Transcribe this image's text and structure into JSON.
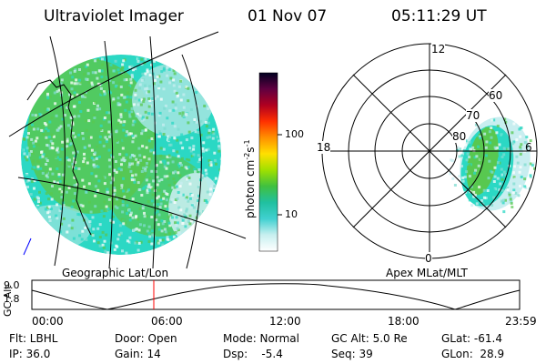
{
  "header": {
    "instrument": "Ultraviolet Imager",
    "date": "01 Nov 07",
    "time": "05:11:29 UT"
  },
  "colorbar": {
    "label_main": "photon cm",
    "label_exp1": "-2",
    "label_s": "s",
    "label_exp2": "-1",
    "ticks": [
      "100",
      "10"
    ],
    "stops": [
      "#ffffff",
      "#c8f0f0",
      "#40d0d0",
      "#20c0a0",
      "#40c040",
      "#a0e000",
      "#ffe000",
      "#ff9000",
      "#ff3000",
      "#b00020",
      "#600040",
      "#000020"
    ]
  },
  "left_panel": {
    "caption": "Geographic Lat/Lon"
  },
  "right_panel": {
    "caption": "Apex MLat/MLT",
    "lat_labels": [
      "80",
      "70",
      "60"
    ],
    "mlt_labels": [
      "12",
      "18",
      "6",
      "0"
    ]
  },
  "altitude_strip": {
    "axis_label": "GC Alt",
    "y_ticks": [
      "9.0",
      "1.8"
    ],
    "x_ticks": [
      "00:00",
      "06:00",
      "12:00",
      "18:00",
      "23:59"
    ]
  },
  "status": {
    "flt": "Flt: LBHL",
    "ip": "IP: 36.0",
    "door": "Door: Open",
    "gain": "Gain: 14",
    "mode": "Mode: Normal",
    "dsp": "Dsp:    -5.4",
    "gc_alt": "GC Alt: 5.0 Re",
    "seq": "Seq: 39",
    "glat": "GLat: -61.4",
    "glon": "GLon:  28.9"
  },
  "colors": {
    "aurora_dense": "#2bd8c4",
    "aurora_green": "#58c850",
    "aurora_light": "#c8eef0",
    "marker": "#ff0000"
  }
}
